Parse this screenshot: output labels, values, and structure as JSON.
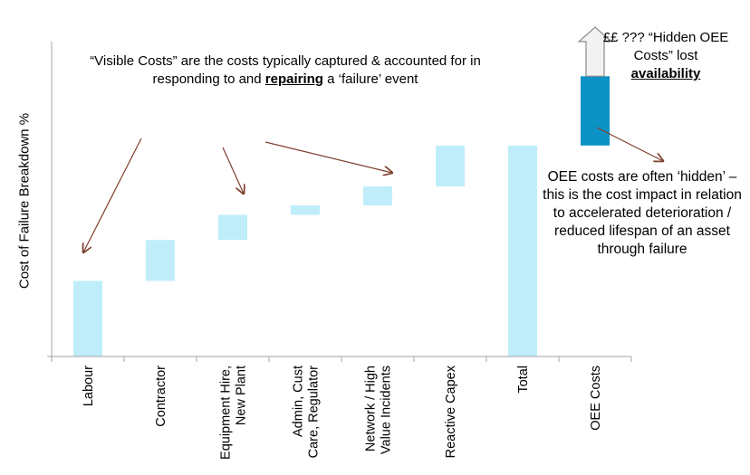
{
  "chart_data": {
    "type": "bar",
    "subtype": "waterfall",
    "ylabel": "Cost of Failure Breakdown %",
    "xlabel": "",
    "ylim": [
      0,
      100
    ],
    "categories": [
      "Labour",
      "Contractor",
      "Equipment Hire, New Plant",
      "Admin, Cust Care, Regulator",
      "Network / High Value Incidents",
      "Reactive Capex",
      "Total",
      "OEE Costs"
    ],
    "category_lines": [
      [
        "Labour"
      ],
      [
        "Contractor"
      ],
      [
        "Equipment Hire,",
        "New Plant"
      ],
      [
        "Admin, Cust",
        "Care, Regulator"
      ],
      [
        "Network / High",
        "Value Incidents"
      ],
      [
        "Reactive Capex"
      ],
      [
        "Total"
      ],
      [
        "OEE Costs"
      ]
    ],
    "segments": [
      {
        "category": "Labour",
        "start": 0,
        "end": 24
      },
      {
        "category": "Contractor",
        "start": 24,
        "end": 37
      },
      {
        "category": "Equipment Hire, New Plant",
        "start": 37,
        "end": 45
      },
      {
        "category": "Admin, Cust Care, Regulator",
        "start": 45,
        "end": 48
      },
      {
        "category": "Network / High Value Incidents",
        "start": 48,
        "end": 54
      },
      {
        "category": "Reactive Capex",
        "start": 54,
        "end": 67
      },
      {
        "category": "Total",
        "start": 0,
        "end": 67
      },
      {
        "category": "OEE Costs",
        "start": 67,
        "end": 89
      }
    ],
    "grid": false,
    "legend": "none"
  },
  "colors": {
    "visible_bar": "#bfeefa",
    "oee_bar": "#0d92c6",
    "axis": "#a6a6a6",
    "arrow": "#7f3f2e"
  },
  "annotations": {
    "visible_costs_pre": "“Visible Costs” are the costs typically captured & accounted for in responding to and ",
    "visible_costs_bold": "repairing",
    "visible_costs_post": " a ‘failure’ event",
    "hidden_pre": "££ ??? “Hidden OEE Costs” lost",
    "hidden_bold": "availability",
    "oee_text": "OEE costs are often ‘hidden’ – this is the cost impact in relation to accelerated deterioration / reduced lifespan of an asset through failure"
  }
}
